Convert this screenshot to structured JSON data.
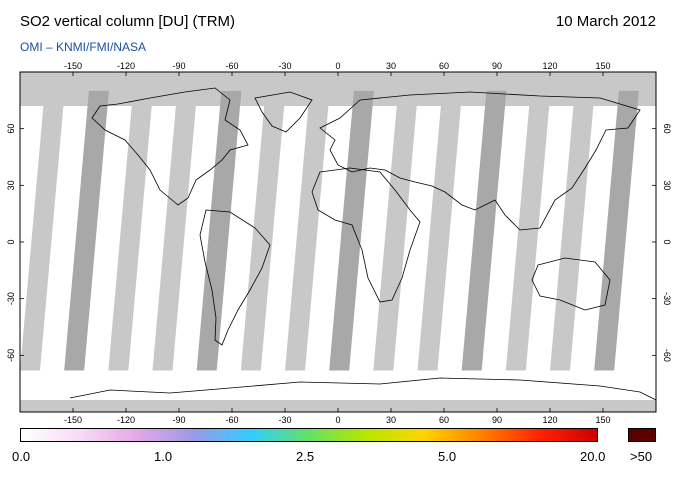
{
  "header": {
    "title": "SO2 vertical column [DU] (TRM)",
    "date": "10 March 2012",
    "credit": "OMI  –  KNMI/FMI/NASA"
  },
  "map": {
    "lon_ticks": [
      "-150",
      "-120",
      "-90",
      "-60",
      "-30",
      "0",
      "30",
      "60",
      "90",
      "120",
      "150"
    ],
    "lat_ticks": [
      "60",
      "30",
      "0",
      "-30",
      "-60"
    ],
    "ocean_color": "#ffffff",
    "no_data_color": "#c8c8c8",
    "orbit_overlap_color": "#a8a8a8",
    "coastline_color": "#000000"
  },
  "colorbar": {
    "labels": [
      "0.0",
      "1.0",
      "2.5",
      "5.0",
      "20.0"
    ],
    "overflow_label": ">50",
    "overflow_color": "#5a0000",
    "stops": [
      "#ffffff",
      "#f7dcf7",
      "#e6a8e6",
      "#9a9ae6",
      "#33ccff",
      "#66e066",
      "#b8e600",
      "#ffd400",
      "#ff8000",
      "#ff2200",
      "#cc0000"
    ]
  }
}
